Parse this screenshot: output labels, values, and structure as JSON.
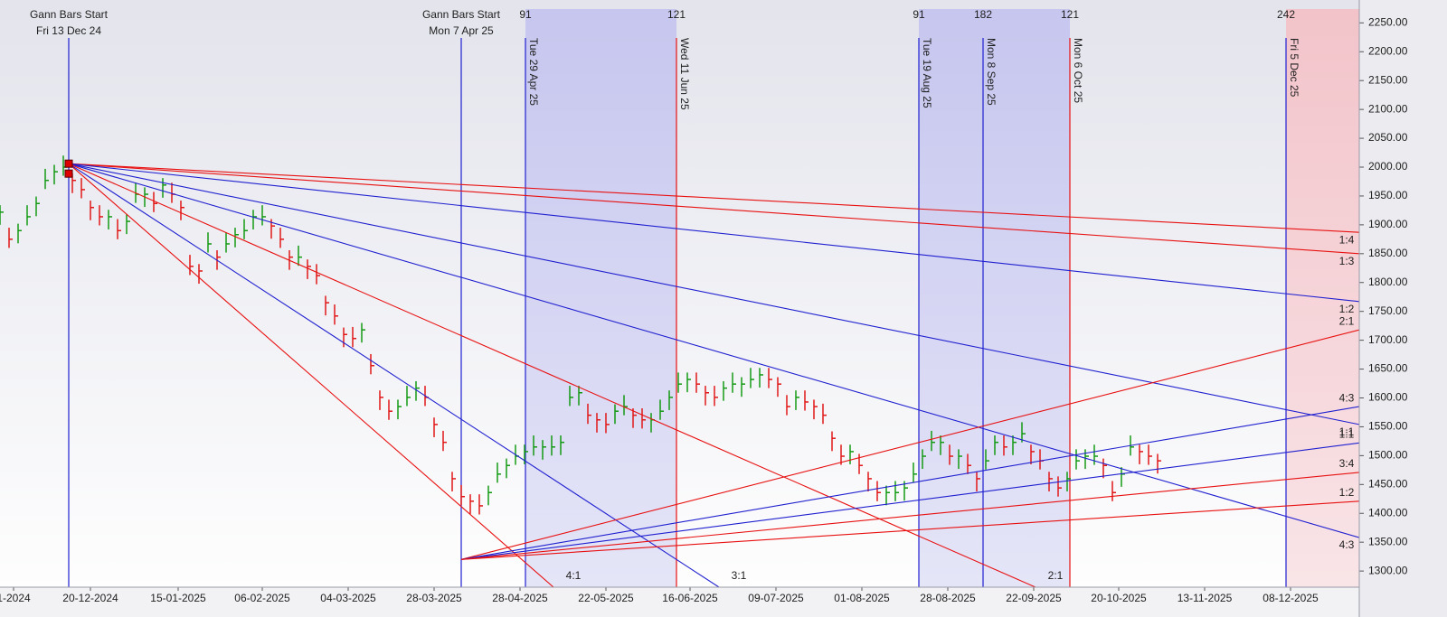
{
  "chart_data": {
    "type": "ohlc",
    "up_color": "#159a15",
    "down_color": "#e01818",
    "xlim": [
      0,
      150.3
    ],
    "ylim": [
      1272,
      2274
    ],
    "xticks": [
      {
        "value": 1.5,
        "label": "1-2024"
      },
      {
        "value": 10.0,
        "label": "20-12-2024"
      },
      {
        "value": 19.7,
        "label": "15-01-2025"
      },
      {
        "value": 29.0,
        "label": "06-02-2025"
      },
      {
        "value": 38.5,
        "label": "04-03-2025"
      },
      {
        "value": 48.0,
        "label": "28-03-2025"
      },
      {
        "value": 57.5,
        "label": "28-04-2025"
      },
      {
        "value": 67.0,
        "label": "22-05-2025"
      },
      {
        "value": 76.3,
        "label": "16-06-2025"
      },
      {
        "value": 85.8,
        "label": "09-07-2025"
      },
      {
        "value": 95.3,
        "label": "01-08-2025"
      },
      {
        "value": 104.8,
        "label": "28-08-2025"
      },
      {
        "value": 114.3,
        "label": "22-09-2025"
      },
      {
        "value": 123.7,
        "label": "20-10-2025"
      },
      {
        "value": 133.2,
        "label": "13-11-2025"
      },
      {
        "value": 142.7,
        "label": "08-12-2025"
      }
    ],
    "yticks": [
      {
        "value": 1300,
        "label": "1300.00"
      },
      {
        "value": 1350,
        "label": "1350.00"
      },
      {
        "value": 1400,
        "label": "1400.00"
      },
      {
        "value": 1450,
        "label": "1450.00"
      },
      {
        "value": 1500,
        "label": "1500.00"
      },
      {
        "value": 1550,
        "label": "1550.00"
      },
      {
        "value": 1600,
        "label": "1600.00"
      },
      {
        "value": 1650,
        "label": "1650.00"
      },
      {
        "value": 1700,
        "label": "1700.00"
      },
      {
        "value": 1750,
        "label": "1750.00"
      },
      {
        "value": 1800,
        "label": "1800.00"
      },
      {
        "value": 1850,
        "label": "1850.00"
      },
      {
        "value": 1900,
        "label": "1900.00"
      },
      {
        "value": 1950,
        "label": "1950.00"
      },
      {
        "value": 2000,
        "label": "2000.00"
      },
      {
        "value": 2050,
        "label": "2050.00"
      },
      {
        "value": 2100,
        "label": "2100.00"
      },
      {
        "value": 2150,
        "label": "2150.00"
      },
      {
        "value": 2200,
        "label": "2200.00"
      },
      {
        "value": 2250,
        "label": "2250.00"
      }
    ],
    "x": [
      0,
      1,
      2,
      3,
      4,
      5,
      6,
      7,
      8,
      9,
      10,
      11,
      12,
      13,
      14,
      15,
      16,
      17,
      18,
      19,
      20,
      21,
      22,
      23,
      24,
      25,
      26,
      27,
      28,
      29,
      30,
      31,
      32,
      33,
      34,
      35,
      36,
      37,
      38,
      39,
      40,
      41,
      42,
      43,
      44,
      45,
      46,
      47,
      48,
      49,
      50,
      51,
      52,
      53,
      54,
      55,
      56,
      57,
      58,
      59,
      60,
      61,
      62,
      63,
      64,
      65,
      66,
      67,
      68,
      69,
      70,
      71,
      72,
      73,
      74,
      75,
      76,
      77,
      78,
      79,
      80,
      81,
      82,
      83,
      84,
      85,
      86,
      87,
      88,
      89,
      90,
      91,
      92,
      93,
      94,
      95,
      96,
      97,
      98,
      99,
      100,
      101,
      102,
      103,
      104,
      105,
      106,
      107,
      108,
      109,
      110,
      111,
      112,
      113,
      114,
      115,
      116,
      117,
      118,
      119,
      120,
      121,
      122,
      123,
      124,
      125,
      126,
      127,
      128
    ],
    "high": [
      1934,
      1895,
      1902,
      1934,
      1949,
      1997,
      2004,
      2020,
      1989,
      1981,
      1942,
      1934,
      1926,
      1910,
      1918,
      1973,
      1965,
      1957,
      1981,
      1973,
      1942,
      1848,
      1832,
      1887,
      1856,
      1887,
      1895,
      1910,
      1926,
      1934,
      1910,
      1895,
      1856,
      1864,
      1840,
      1832,
      1777,
      1762,
      1722,
      1723,
      1730,
      1676,
      1613,
      1597,
      1597,
      1621,
      1629,
      1621,
      1566,
      1543,
      1472,
      1449,
      1433,
      1433,
      1448,
      1488,
      1495,
      1519,
      1519,
      1535,
      1527,
      1535,
      1535,
      1621,
      1621,
      1590,
      1574,
      1574,
      1589,
      1605,
      1582,
      1582,
      1574,
      1597,
      1613,
      1644,
      1644,
      1644,
      1621,
      1621,
      1629,
      1644,
      1636,
      1652,
      1652,
      1652,
      1636,
      1605,
      1613,
      1613,
      1597,
      1590,
      1542,
      1519,
      1519,
      1503,
      1472,
      1456,
      1448,
      1456,
      1456,
      1488,
      1511,
      1543,
      1535,
      1519,
      1511,
      1503,
      1472,
      1511,
      1535,
      1535,
      1535,
      1558,
      1519,
      1511,
      1472,
      1464,
      1472,
      1511,
      1511,
      1519,
      1495,
      1456,
      1480,
      1535,
      1519,
      1519,
      1503
    ],
    "low": [
      1900,
      1860,
      1868,
      1899,
      1915,
      1962,
      1970,
      1985,
      1955,
      1946,
      1908,
      1899,
      1892,
      1875,
      1884,
      1938,
      1931,
      1922,
      1947,
      1938,
      1908,
      1813,
      1798,
      1852,
      1822,
      1852,
      1861,
      1875,
      1892,
      1899,
      1876,
      1860,
      1822,
      1829,
      1806,
      1797,
      1743,
      1727,
      1688,
      1688,
      1696,
      1641,
      1579,
      1562,
      1563,
      1586,
      1595,
      1586,
      1532,
      1508,
      1438,
      1414,
      1399,
      1398,
      1414,
      1453,
      1461,
      1484,
      1485,
      1500,
      1493,
      1500,
      1501,
      1586,
      1587,
      1555,
      1540,
      1539,
      1555,
      1570,
      1548,
      1547,
      1540,
      1562,
      1579,
      1609,
      1610,
      1609,
      1587,
      1586,
      1595,
      1609,
      1602,
      1617,
      1618,
      1617,
      1602,
      1570,
      1579,
      1578,
      1563,
      1555,
      1508,
      1484,
      1485,
      1468,
      1438,
      1421,
      1414,
      1421,
      1422,
      1453,
      1477,
      1508,
      1501,
      1484,
      1477,
      1468,
      1438,
      1476,
      1501,
      1500,
      1501,
      1523,
      1485,
      1476,
      1438,
      1429,
      1438,
      1476,
      1477,
      1484,
      1461,
      1421,
      1446,
      1500,
      1485,
      1484,
      1469
    ],
    "close": [
      1922,
      1875,
      1890,
      1914,
      1937,
      1977,
      1992,
      2000,
      1977,
      1961,
      1930,
      1914,
      1914,
      1890,
      1906,
      1953,
      1953,
      1937,
      1969,
      1953,
      1930,
      1828,
      1820,
      1867,
      1844,
      1867,
      1883,
      1890,
      1914,
      1914,
      1898,
      1875,
      1844,
      1844,
      1828,
      1812,
      1765,
      1742,
      1710,
      1703,
      1718,
      1656,
      1601,
      1577,
      1585,
      1601,
      1617,
      1601,
      1554,
      1523,
      1460,
      1429,
      1421,
      1413,
      1436,
      1468,
      1483,
      1499,
      1507,
      1515,
      1515,
      1515,
      1523,
      1601,
      1609,
      1570,
      1562,
      1554,
      1577,
      1585,
      1570,
      1562,
      1562,
      1577,
      1601,
      1624,
      1632,
      1624,
      1609,
      1601,
      1617,
      1624,
      1624,
      1632,
      1640,
      1632,
      1624,
      1585,
      1601,
      1593,
      1585,
      1570,
      1530,
      1499,
      1507,
      1483,
      1460,
      1436,
      1436,
      1436,
      1444,
      1468,
      1499,
      1523,
      1523,
      1499,
      1499,
      1483,
      1460,
      1491,
      1523,
      1515,
      1523,
      1538,
      1507,
      1491,
      1460,
      1444,
      1460,
      1491,
      1499,
      1499,
      1483,
      1436,
      1468,
      1515,
      1507,
      1499,
      1491
    ],
    "zones": [
      {
        "from": 58.1,
        "to": 74.8,
        "color": "#c6c6ef"
      },
      {
        "from": 101.6,
        "to": 118.3,
        "color": "#c6c6ef"
      },
      {
        "from": 142.2,
        "to": 150.3,
        "color": "#f2c4ca"
      }
    ],
    "markers": [
      {
        "x": 7.6,
        "color": "#2020d0",
        "label": "Gann Bars Start",
        "date": "Fri 13 Dec 24"
      },
      {
        "x": 51.0,
        "color": "#2020d0",
        "label": "Gann Bars Start",
        "date": "Mon 7 Apr 25"
      },
      {
        "x": 58.1,
        "color": "#2020d0",
        "count": 91,
        "date": "Tue 29 Apr 25"
      },
      {
        "x": 74.8,
        "color": "#e81010",
        "count": 121,
        "date": "Wed 11 Jun 25"
      },
      {
        "x": 101.6,
        "color": "#2020d0",
        "count": 91,
        "date": "Tue 19 Aug 25"
      },
      {
        "x": 108.7,
        "color": "#2020d0",
        "count": 182,
        "date": "Mon 8 Sep 25"
      },
      {
        "x": 118.3,
        "color": "#e81010",
        "count": 121,
        "date": "Mon 6 Oct 25"
      },
      {
        "x": 142.2,
        "color": "#2020d0",
        "count": 242,
        "date": "Fri 5 Dec 25"
      }
    ],
    "fans": [
      {
        "label": "1:4",
        "color": "#e81010",
        "x1": 7.6,
        "y1": 2006,
        "x2": 150.3,
        "y2": 1887
      },
      {
        "label": "1:3",
        "color": "#e81010",
        "x1": 7.6,
        "y1": 2006,
        "x2": 150.3,
        "y2": 1850
      },
      {
        "label": "1:2",
        "color": "#2020d0",
        "x1": 7.6,
        "y1": 2006,
        "x2": 150.3,
        "y2": 1767
      },
      {
        "label": "1:1",
        "color": "#2020d0",
        "x1": 7.6,
        "y1": 2006,
        "x2": 150.3,
        "y2": 1554
      },
      {
        "label": "4:3",
        "color": "#2020d0",
        "x1": 7.6,
        "y1": 2006,
        "x2": 150.3,
        "y2": 1358
      },
      {
        "label": "4:1",
        "color": "#e81010",
        "x1": 7.6,
        "y1": 2006,
        "x2": 61.2,
        "y2": 1272
      },
      {
        "label": "3:1",
        "color": "#2020d0",
        "x1": 7.6,
        "y1": 2006,
        "x2": 79.5,
        "y2": 1272
      },
      {
        "label": "2:1",
        "color": "#e81010",
        "x1": 7.6,
        "y1": 2006,
        "x2": 114.5,
        "y2": 1272
      },
      {
        "label": "2:1",
        "color": "#e81010",
        "x1": 51.0,
        "y1": 1320,
        "x2": 150.3,
        "y2": 1718
      },
      {
        "label": "4:3",
        "color": "#2020d0",
        "x1": 51.0,
        "y1": 1320,
        "x2": 150.3,
        "y2": 1585
      },
      {
        "label": "1:1",
        "color": "#2020d0",
        "x1": 51.0,
        "y1": 1320,
        "x2": 150.3,
        "y2": 1522
      },
      {
        "label": "3:4",
        "color": "#e81010",
        "x1": 51.0,
        "y1": 1320,
        "x2": 150.3,
        "y2": 1471
      },
      {
        "label": "1:2",
        "color": "#e81010",
        "x1": 51.0,
        "y1": 1320,
        "x2": 150.3,
        "y2": 1421
      }
    ]
  }
}
